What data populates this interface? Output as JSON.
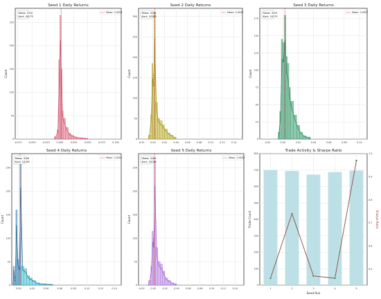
{
  "figure": {
    "colors": {
      "seed1": "#e68a9a",
      "seed1_dark": "#c8506a",
      "seed2": "#c8bd55",
      "seed2_dark": "#9e9420",
      "seed3": "#5fb08a",
      "seed3_dark": "#2f8660",
      "seed4": "#5a9fc8",
      "seed4_dark": "#2f6f9e",
      "seed4_light": "#5fd6d8",
      "seed5": "#c39be8",
      "seed5_dark": "#9a66cc",
      "mean_line": "#e03030",
      "bars_trade": "#b5dde3",
      "sharpe_line": "#8b4a3a",
      "sharpe_marker": "#2f6f4a",
      "grid": "#e3e3e3"
    }
  },
  "chart_data": [
    {
      "type": "bar",
      "title": "Seed 1 Daily Returns",
      "ylabel": "Count",
      "xlabel": "",
      "grid": true,
      "legend": {
        "placement": "top-right",
        "entries": [
          "Mean: 0.0023"
        ]
      },
      "annotation": [
        "Skew: 2.52",
        "Kurt: 26.73"
      ],
      "mean": 0.0023,
      "xlim": [
        -0.08,
        0.11
      ],
      "ylim": [
        0,
        280
      ],
      "xticks": [
        -0.075,
        -0.05,
        -0.025,
        0.0,
        0.025,
        0.05,
        0.075,
        0.1
      ],
      "xtick_labels": [
        "-0.075",
        "-0.050",
        "-0.025",
        "0.000",
        "0.025",
        "0.050",
        "0.075",
        "0.100"
      ],
      "yticks": [
        0,
        50,
        100,
        150,
        200,
        250
      ],
      "bin_edges": [
        -0.01,
        -0.005,
        -0.002,
        0.0,
        0.002,
        0.004,
        0.006,
        0.01,
        0.015,
        0.02,
        0.025,
        0.03,
        0.04,
        0.05
      ],
      "counts": [
        5,
        20,
        170,
        265,
        150,
        60,
        45,
        25,
        12,
        8,
        5,
        3,
        2
      ]
    },
    {
      "type": "bar",
      "title": "Seed 2 Daily Returns",
      "ylabel": "Count",
      "xlabel": "",
      "grid": true,
      "legend": {
        "placement": "top-right",
        "entries": [
          "Mean: 0.0032"
        ]
      },
      "annotation": [
        "Skew: 3.95",
        "Kurt: 20.89"
      ],
      "mean": 0.0032,
      "xlim": [
        -0.025,
        0.155
      ],
      "ylim": [
        0,
        320
      ],
      "xticks": [
        -0.02,
        0.0,
        0.02,
        0.04,
        0.06,
        0.08,
        0.1,
        0.12,
        0.14
      ],
      "xtick_labels": [
        "-0.02",
        "0.00",
        "0.02",
        "0.04",
        "0.06",
        "0.08",
        "0.10",
        "0.12",
        "0.14"
      ],
      "yticks": [
        0,
        50,
        100,
        150,
        200,
        250,
        300
      ],
      "bin_edges": [
        -0.008,
        -0.004,
        -0.002,
        0.0,
        0.002,
        0.004,
        0.008,
        0.012,
        0.016,
        0.02,
        0.025,
        0.03,
        0.035,
        0.04
      ],
      "counts": [
        10,
        60,
        185,
        160,
        310,
        90,
        50,
        45,
        35,
        25,
        15,
        10,
        5
      ]
    },
    {
      "type": "bar",
      "title": "Seed 3 Daily Returns",
      "ylabel": "Count",
      "xlabel": "",
      "grid": true,
      "legend": {
        "placement": "top-right",
        "entries": [
          "Mean: 0.0027"
        ]
      },
      "annotation": [
        "Skew: 3.03",
        "Kurt: 19.75"
      ],
      "mean": 0.0027,
      "xlim": [
        -0.03,
        0.11
      ],
      "ylim": [
        0,
        190
      ],
      "xticks": [
        -0.02,
        0.0,
        0.02,
        0.04,
        0.06,
        0.08,
        0.1
      ],
      "xtick_labels": [
        "-0.02",
        "0.00",
        "0.02",
        "0.04",
        "0.06",
        "0.08",
        "0.10"
      ],
      "yticks": [
        0,
        25,
        50,
        75,
        100,
        125,
        150,
        175
      ],
      "bin_edges": [
        -0.006,
        -0.004,
        -0.002,
        0.0,
        0.002,
        0.004,
        0.006,
        0.008,
        0.01,
        0.014,
        0.018,
        0.022,
        0.026,
        0.03,
        0.036
      ],
      "counts": [
        10,
        40,
        145,
        140,
        180,
        120,
        110,
        75,
        55,
        35,
        20,
        10,
        5,
        3
      ]
    },
    {
      "type": "bar",
      "title": "Seed 4 Daily Returns",
      "ylabel": "Count",
      "xlabel": "",
      "grid": true,
      "legend": {
        "placement": "top-right",
        "entries": [
          "Mean: 0.0021"
        ]
      },
      "annotation": [
        "Skew: 3.60",
        "Kurt: 24.99"
      ],
      "mean": 0.0021,
      "xlim": [
        -0.01,
        0.15
      ],
      "ylim": [
        0,
        280
      ],
      "xticks": [
        0.0,
        0.02,
        0.04,
        0.06,
        0.08,
        0.1,
        0.12,
        0.14
      ],
      "xtick_labels": [
        "0.00",
        "0.02",
        "0.04",
        "0.06",
        "0.08",
        "0.10",
        "0.12",
        "0.14"
      ],
      "yticks": [
        0,
        50,
        100,
        150,
        200,
        250
      ],
      "bin_edges": [
        -0.008,
        -0.006,
        -0.004,
        -0.002,
        0.0,
        0.002,
        0.004,
        0.008,
        0.012,
        0.016,
        0.02,
        0.025,
        0.03,
        0.04,
        0.05
      ],
      "counts": [
        40,
        10,
        160,
        55,
        40,
        260,
        40,
        35,
        20,
        15,
        10,
        5,
        3,
        2
      ]
    },
    {
      "type": "bar",
      "title": "Seed 5 Daily Returns",
      "ylabel": "Count",
      "xlabel": "",
      "grid": true,
      "legend": {
        "placement": "top-right",
        "entries": [
          "Mean: 0.0023"
        ]
      },
      "annotation": [
        "Skew: 3.68",
        "Kurt: 25.55"
      ],
      "mean": 0.0023,
      "xlim": [
        -0.025,
        0.155
      ],
      "ylim": [
        0,
        280
      ],
      "xticks": [
        -0.02,
        0.0,
        0.02,
        0.04,
        0.06,
        0.08,
        0.1,
        0.12,
        0.14
      ],
      "xtick_labels": [
        "-0.02",
        "0.00",
        "0.02",
        "0.04",
        "0.06",
        "0.08",
        "0.10",
        "0.12",
        "0.14"
      ],
      "yticks": [
        0,
        50,
        100,
        150,
        200,
        250
      ],
      "bin_edges": [
        -0.008,
        -0.004,
        -0.002,
        0.0,
        0.002,
        0.004,
        0.008,
        0.012,
        0.016,
        0.02,
        0.025,
        0.03,
        0.035,
        0.04
      ],
      "counts": [
        10,
        40,
        115,
        100,
        265,
        80,
        50,
        45,
        30,
        15,
        10,
        5,
        3
      ]
    },
    {
      "type": "bar",
      "title": "Trade Activity & Sharpe Ratio",
      "xlabel": "Seed Run",
      "ylabel": "Trade Count",
      "y2label": "Sharpe Ratio",
      "grid": true,
      "categories": [
        "1",
        "2",
        "3",
        "4",
        "5"
      ],
      "series": [
        {
          "values": [
            700,
            695,
            673,
            688,
            697
          ]
        },
        {
          "values": [
            0.46,
            0.74,
            0.47,
            0.46,
            0.97
          ]
        }
      ],
      "ylim": [
        0,
        800
      ],
      "y2lim": [
        0.43,
        1.0
      ],
      "yticks": [
        0,
        100,
        200,
        300,
        400,
        500,
        600,
        700,
        800
      ],
      "y2ticks": [
        0.5,
        0.6,
        0.7,
        0.8,
        0.9,
        1.0
      ],
      "y2tick_labels": [
        "0.5",
        "0.6",
        "0.7",
        "0.8",
        "0.9",
        "1.0"
      ]
    }
  ]
}
